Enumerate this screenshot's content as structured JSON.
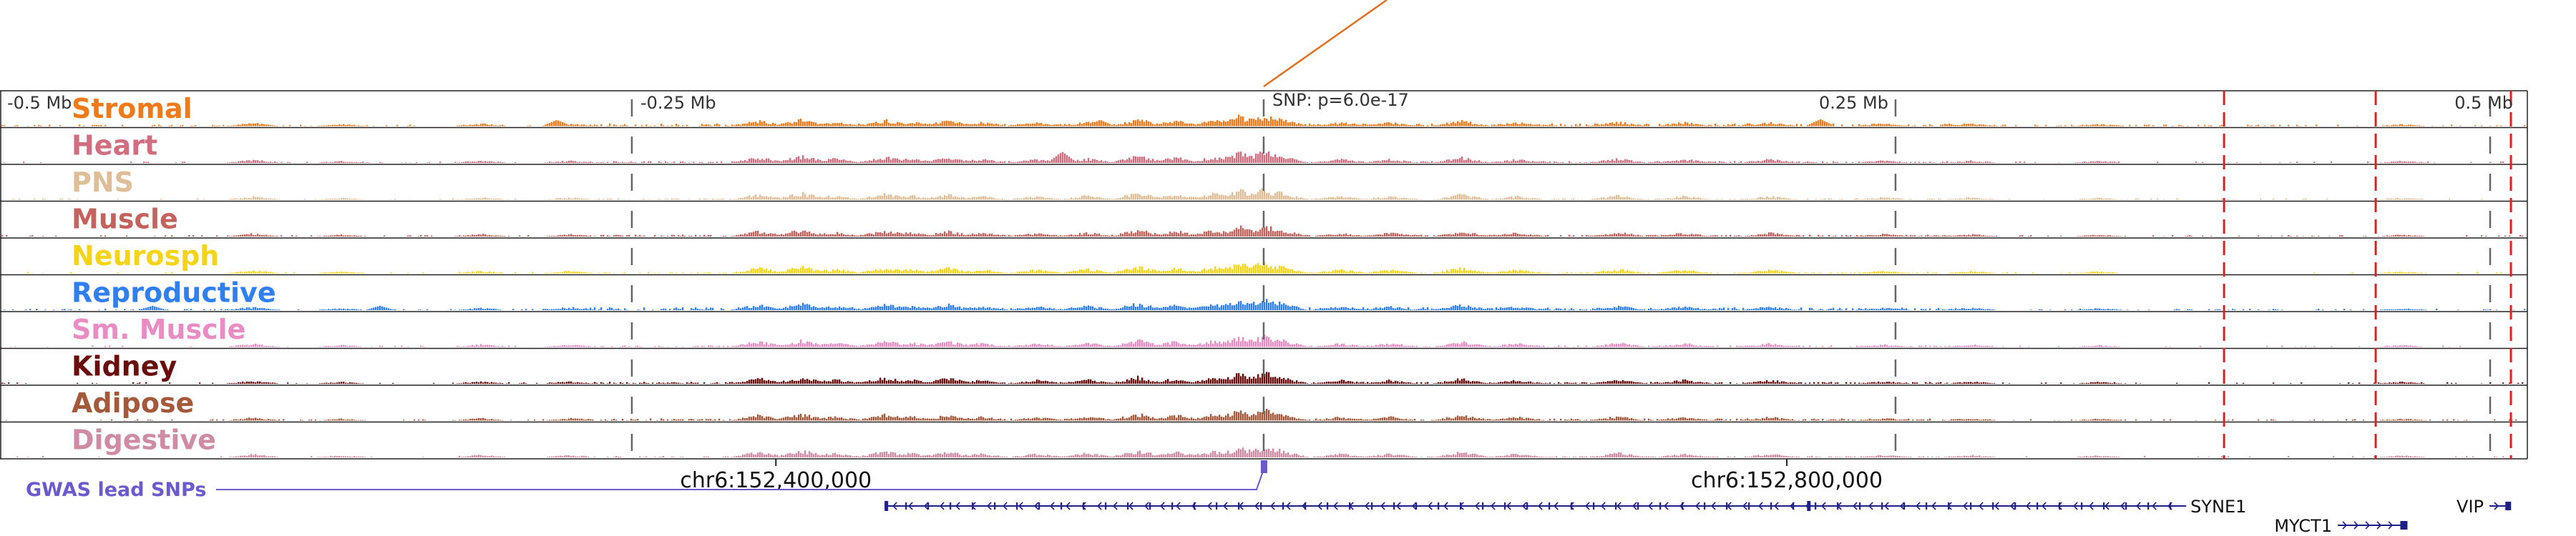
{
  "chart_data": {
    "type": "area",
    "title": "",
    "xlabel": "",
    "ylabel": "",
    "x_range_mb": [
      -0.5,
      0.5
    ],
    "grid": false,
    "offset_labels": [
      {
        "pos": -0.5,
        "text": "-0.5 Mb"
      },
      {
        "pos": -0.25,
        "text": "-0.25 Mb"
      },
      {
        "pos": 0.25,
        "text": "0.25 Mb"
      },
      {
        "pos": 0.5,
        "text": "0.5 Mb"
      }
    ],
    "snp": {
      "pos": 0.0,
      "label": "SNP: p=6.0e-17"
    },
    "red_dashed_positions_mb": [
      0.38,
      0.44,
      0.4935
    ],
    "series": [
      {
        "name": "Stromal",
        "color": "#f07a1a"
      },
      {
        "name": "Heart",
        "color": "#d06e80"
      },
      {
        "name": "PNS",
        "color": "#dfbd96"
      },
      {
        "name": "Muscle",
        "color": "#c4625e"
      },
      {
        "name": "Neurosph",
        "color": "#f4d414"
      },
      {
        "name": "Reproductive",
        "color": "#2f7ff0"
      },
      {
        "name": "Sm. Muscle",
        "color": "#ea8cc4"
      },
      {
        "name": "Kidney",
        "color": "#6a0d0d"
      },
      {
        "name": "Adipose",
        "color": "#a45a3a"
      },
      {
        "name": "Digestive",
        "color": "#cf8aa4"
      }
    ],
    "genomic_ticks": [
      {
        "pos": -0.193,
        "label": "chr6:152,400,000"
      },
      {
        "pos": 0.207,
        "label": "chr6:152,800,000"
      }
    ],
    "gwas": {
      "label": "GWAS lead SNPs",
      "color": "#6a5acd",
      "pos": 0.0
    },
    "genes": [
      {
        "name": "SYNE1",
        "start": -0.15,
        "end": 0.365,
        "strand": "-",
        "row": 1
      },
      {
        "name": "MYCT1",
        "start": 0.425,
        "end": 0.452,
        "strand": "+",
        "row": 2
      },
      {
        "name": "VIP",
        "start": 0.485,
        "end": 0.493,
        "strand": "+",
        "row": 1
      }
    ]
  }
}
